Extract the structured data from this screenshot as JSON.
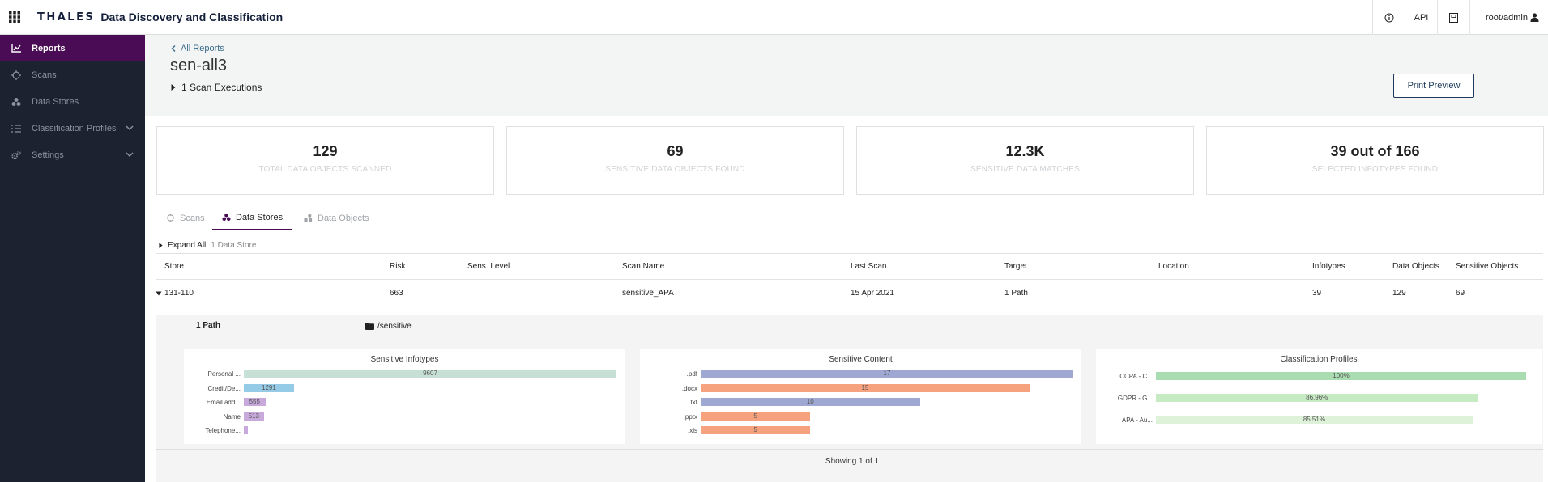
{
  "header": {
    "brand": "THALES",
    "product": "Data Discovery and Classification",
    "api_label": "API",
    "user": "root/admin"
  },
  "sidebar": {
    "items": [
      {
        "label": "Reports",
        "icon": "chart-icon",
        "active": true
      },
      {
        "label": "Scans",
        "icon": "crosshair-icon"
      },
      {
        "label": "Data Stores",
        "icon": "cluster-icon"
      },
      {
        "label": "Classification Profiles",
        "icon": "list-icon",
        "expandable": true
      },
      {
        "label": "Settings",
        "icon": "gears-icon",
        "expandable": true
      }
    ]
  },
  "report": {
    "back_label": "All Reports",
    "title": "sen-all3",
    "scan_executions": "1 Scan Executions",
    "print_label": "Print Preview"
  },
  "summary_cards": [
    {
      "value": "129",
      "label": "TOTAL DATA OBJECTS SCANNED"
    },
    {
      "value": "69",
      "label": "SENSITIVE DATA OBJECTS FOUND"
    },
    {
      "value": "12.3K",
      "label": "SENSITIVE DATA MATCHES"
    },
    {
      "value": "39 out of 166",
      "label": "SELECTED INFOTYPES FOUND"
    }
  ],
  "tabs": [
    {
      "label": "Scans",
      "icon": "crosshair-icon"
    },
    {
      "label": "Data Stores",
      "icon": "cluster-icon",
      "active": true
    },
    {
      "label": "Data Objects",
      "icon": "objects-icon"
    }
  ],
  "expand": {
    "label": "Expand All",
    "count": "1 Data Store"
  },
  "table": {
    "columns": [
      "Store",
      "Risk",
      "Sens. Level",
      "Scan Name",
      "Last Scan",
      "Target",
      "Location",
      "Infotypes",
      "Data Objects",
      "Sensitive Objects"
    ],
    "rows": [
      {
        "store": "131-110",
        "risk": "663",
        "sens_level": "",
        "scan_name": "sensitive_APA",
        "last_scan": "15 Apr 2021",
        "target": "1 Path",
        "location": "",
        "infotypes": "39",
        "data_objects": "129",
        "sensitive_objects": "69"
      }
    ]
  },
  "detail": {
    "path_label": "1 Path",
    "path_value": "/sensitive"
  },
  "chart_data": [
    {
      "type": "bar",
      "orientation": "horizontal",
      "title": "Sensitive Infotypes",
      "categories": [
        "Personal ...",
        "Credit/De...",
        "Email add...",
        "Name",
        "Telephone..."
      ],
      "values": [
        9607,
        1291,
        555,
        513,
        100
      ],
      "value_labels": [
        "9607",
        "1291",
        "555",
        "513",
        ""
      ],
      "colors": [
        "#c7e0d6",
        "#95cbe6",
        "#c8a9dc",
        "#c8a9dc",
        "#c8a9dc"
      ],
      "xlim": [
        0,
        9607
      ]
    },
    {
      "type": "bar",
      "orientation": "horizontal",
      "title": "Sensitive Content",
      "categories": [
        ".pdf",
        ".docx",
        ".txt",
        ".pptx",
        ".xls"
      ],
      "values": [
        17,
        15,
        10,
        5,
        5
      ],
      "value_labels": [
        "17",
        "15",
        "10",
        "5",
        "5"
      ],
      "colors": [
        "#9ea8d2",
        "#f6a27e",
        "#9ea8d2",
        "#f6a27e",
        "#f6a27e"
      ],
      "xlim": [
        0,
        17
      ]
    },
    {
      "type": "bar",
      "orientation": "horizontal",
      "title": "Classification Profiles",
      "categories": [
        "CCPA - C...",
        "GDPR - G...",
        "APA - Au..."
      ],
      "values": [
        100,
        86.96,
        85.51
      ],
      "value_labels": [
        "100%",
        "86.96%",
        "85.51%"
      ],
      "colors": [
        "#a9dcb0",
        "#c6ebc2",
        "#ddf2d8"
      ],
      "xlim": [
        0,
        100
      ]
    }
  ],
  "footer": {
    "showing": "Showing 1 of 1"
  },
  "colors": {
    "sidebar_bg": "#1c2230",
    "active_bg": "#4a0d55",
    "brand": "#141f3a"
  }
}
